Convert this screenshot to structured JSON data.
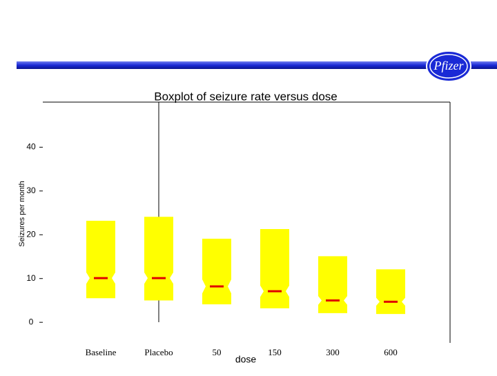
{
  "header": {
    "logo": "Pfizer"
  },
  "chart_data": {
    "type": "box",
    "title": "Boxplot of seizure rate versus dose",
    "x_label": "dose",
    "y_label": "Seizures per month",
    "categories": [
      "Baseline",
      "Placebo",
      "50",
      "150",
      "300",
      "600"
    ],
    "q1": [
      5.5,
      5.0,
      4.1,
      3.2,
      2.1,
      1.9
    ],
    "median": [
      10.1,
      10.1,
      8.2,
      7.1,
      5.0,
      4.7
    ],
    "q3": [
      23.2,
      24.1,
      19.1,
      21.3,
      15.1,
      12.1
    ],
    "notch_low": [
      8.8,
      8.8,
      6.6,
      5.8,
      4.0,
      3.8
    ],
    "notch_high": [
      11.4,
      11.4,
      9.8,
      8.4,
      6.0,
      5.6
    ],
    "color": "#ffff00",
    "median_color": "#e00000",
    "ylim": [
      -4.7,
      50.3
    ],
    "yticks": [
      0,
      10,
      20,
      30,
      40
    ]
  }
}
